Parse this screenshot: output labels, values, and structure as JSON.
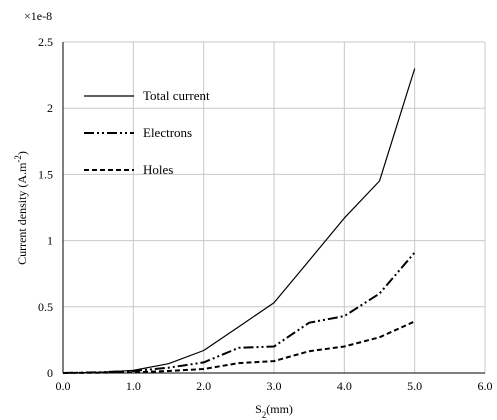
{
  "chart_data": {
    "type": "line",
    "title": "",
    "multiplier_label": "×1e-8",
    "xlabel_main": "S",
    "xlabel_sub": "2",
    "xlabel_rest": "(mm)",
    "ylabel_main": "Current density (A.m",
    "ylabel_sup": "-2",
    "ylabel_rest": ")",
    "xlim": [
      0,
      6
    ],
    "ylim": [
      0,
      2.5
    ],
    "xticks": [
      "0.0",
      "1.0",
      "2.0",
      "3.0",
      "4.0",
      "5.0",
      "6.0"
    ],
    "yticks": [
      "0",
      "0.5",
      "1",
      "1.5",
      "2",
      "2.5"
    ],
    "grid": true,
    "legend_position": "top-left",
    "series": [
      {
        "name": "Total current",
        "style": "solid",
        "x": [
          0,
          0.5,
          1.0,
          1.5,
          2.0,
          2.5,
          3.0,
          3.5,
          4.0,
          4.5,
          5.0
        ],
        "y": [
          0,
          0.005,
          0.02,
          0.07,
          0.17,
          0.35,
          0.53,
          0.85,
          1.17,
          1.45,
          2.3
        ]
      },
      {
        "name": "Electrons",
        "style": "dash-dot-dot",
        "x": [
          0,
          0.5,
          1.0,
          1.5,
          2.0,
          2.5,
          3.0,
          3.5,
          4.0,
          4.5,
          5.0
        ],
        "y": [
          0,
          0.005,
          0.015,
          0.04,
          0.08,
          0.19,
          0.2,
          0.38,
          0.43,
          0.6,
          0.91
        ]
      },
      {
        "name": "Holes",
        "style": "dashed",
        "x": [
          0,
          0.5,
          1.0,
          1.5,
          2.0,
          2.5,
          3.0,
          3.5,
          4.0,
          4.5,
          5.0
        ],
        "y": [
          0,
          0.002,
          0.005,
          0.015,
          0.03,
          0.075,
          0.09,
          0.165,
          0.2,
          0.27,
          0.39
        ]
      }
    ]
  }
}
